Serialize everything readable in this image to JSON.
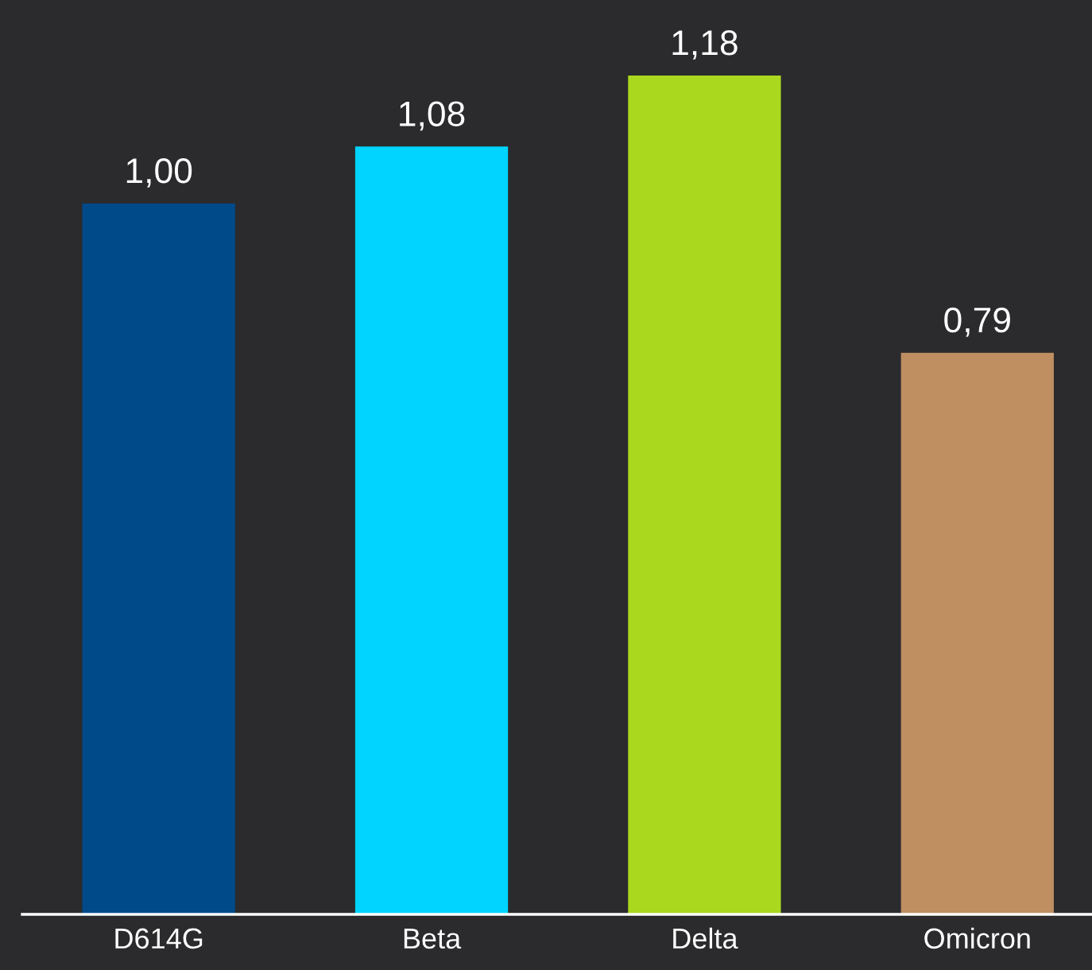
{
  "chart_data": {
    "type": "bar",
    "categories": [
      "D614G",
      "Beta",
      "Delta",
      "Omicron"
    ],
    "values": [
      1.0,
      1.08,
      1.18,
      0.79
    ],
    "colors": [
      "#004a8a",
      "#00d4ff",
      "#aad81e",
      "#bf8f62"
    ],
    "value_labels": [
      "1,00",
      "1,08",
      "1,18",
      "0,79"
    ],
    "grid": false,
    "legend": false
  }
}
